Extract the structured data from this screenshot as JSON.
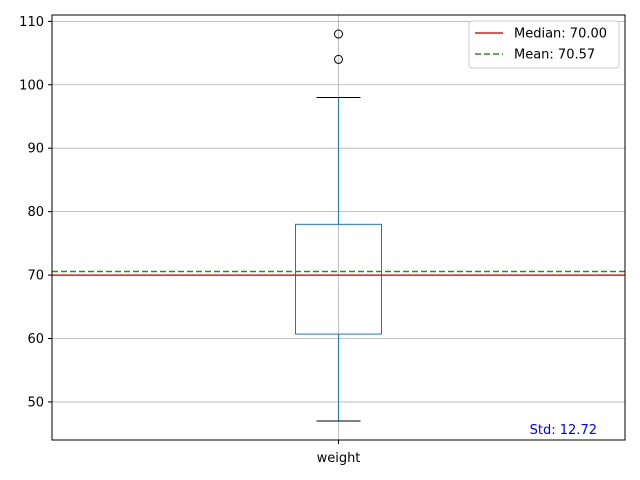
{
  "chart_data": {
    "type": "box",
    "categories": [
      "weight"
    ],
    "box": {
      "whisker_low": 47,
      "q1": 60.7,
      "median": 70.0,
      "q3": 78.0,
      "whisker_high": 98,
      "outliers": [
        104,
        108
      ]
    },
    "ylim": [
      44,
      111
    ],
    "yticks": [
      50,
      60,
      70,
      80,
      90,
      100,
      110
    ],
    "grid": true,
    "reference_lines": [
      {
        "name": "Median: 70.00",
        "value": 70.0,
        "color": "#e41a1c",
        "style": "solid"
      },
      {
        "name": "Mean: 70.57",
        "value": 70.57,
        "color": "#2a8a2a",
        "style": "dashed"
      }
    ],
    "legend": {
      "placement": "top-right",
      "items": [
        "Median: 70.00",
        "Mean: 70.57"
      ]
    },
    "annotation": {
      "text": "Std: 12.72",
      "color": "#0000ff",
      "placement": "bottom-right"
    },
    "colors": {
      "box": "#1f77b4",
      "grid": "#b0b0b0",
      "whisker_cap": "#000000"
    }
  }
}
